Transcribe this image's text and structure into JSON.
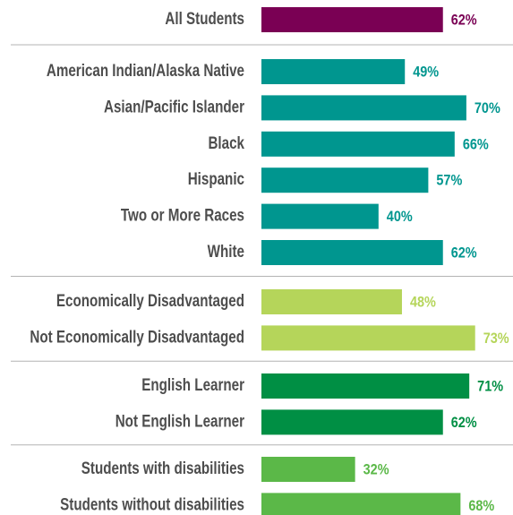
{
  "chart_data": {
    "type": "bar",
    "groups": [
      {
        "color": "#7a0054",
        "categories": [
          "All Students"
        ],
        "values": [
          62
        ],
        "value_labels": [
          "62%"
        ]
      },
      {
        "color": "#00968f",
        "categories": [
          "American Indian/Alaska Native",
          "Asian/Pacific Islander",
          "Black",
          "Hispanic",
          "Two or More Races",
          "White"
        ],
        "values": [
          49,
          70,
          66,
          57,
          40,
          62
        ],
        "value_labels": [
          "49%",
          "70%",
          "66%",
          "57%",
          "40%",
          "62%"
        ]
      },
      {
        "color": "#b5d55a",
        "categories": [
          "Economically Disadvantaged",
          "Not Economically Disadvantaged"
        ],
        "values": [
          48,
          73
        ],
        "value_labels": [
          "48%",
          "73%"
        ]
      },
      {
        "color": "#008f44",
        "categories": [
          "English Learner",
          "Not English Learner"
        ],
        "values": [
          71,
          62
        ],
        "value_labels": [
          "71%",
          "62%"
        ]
      },
      {
        "color": "#5bb848",
        "categories": [
          "Students with disabilities",
          "Students without disabilities"
        ],
        "values": [
          32,
          68
        ],
        "value_labels": [
          "32%",
          "68%"
        ]
      }
    ]
  }
}
